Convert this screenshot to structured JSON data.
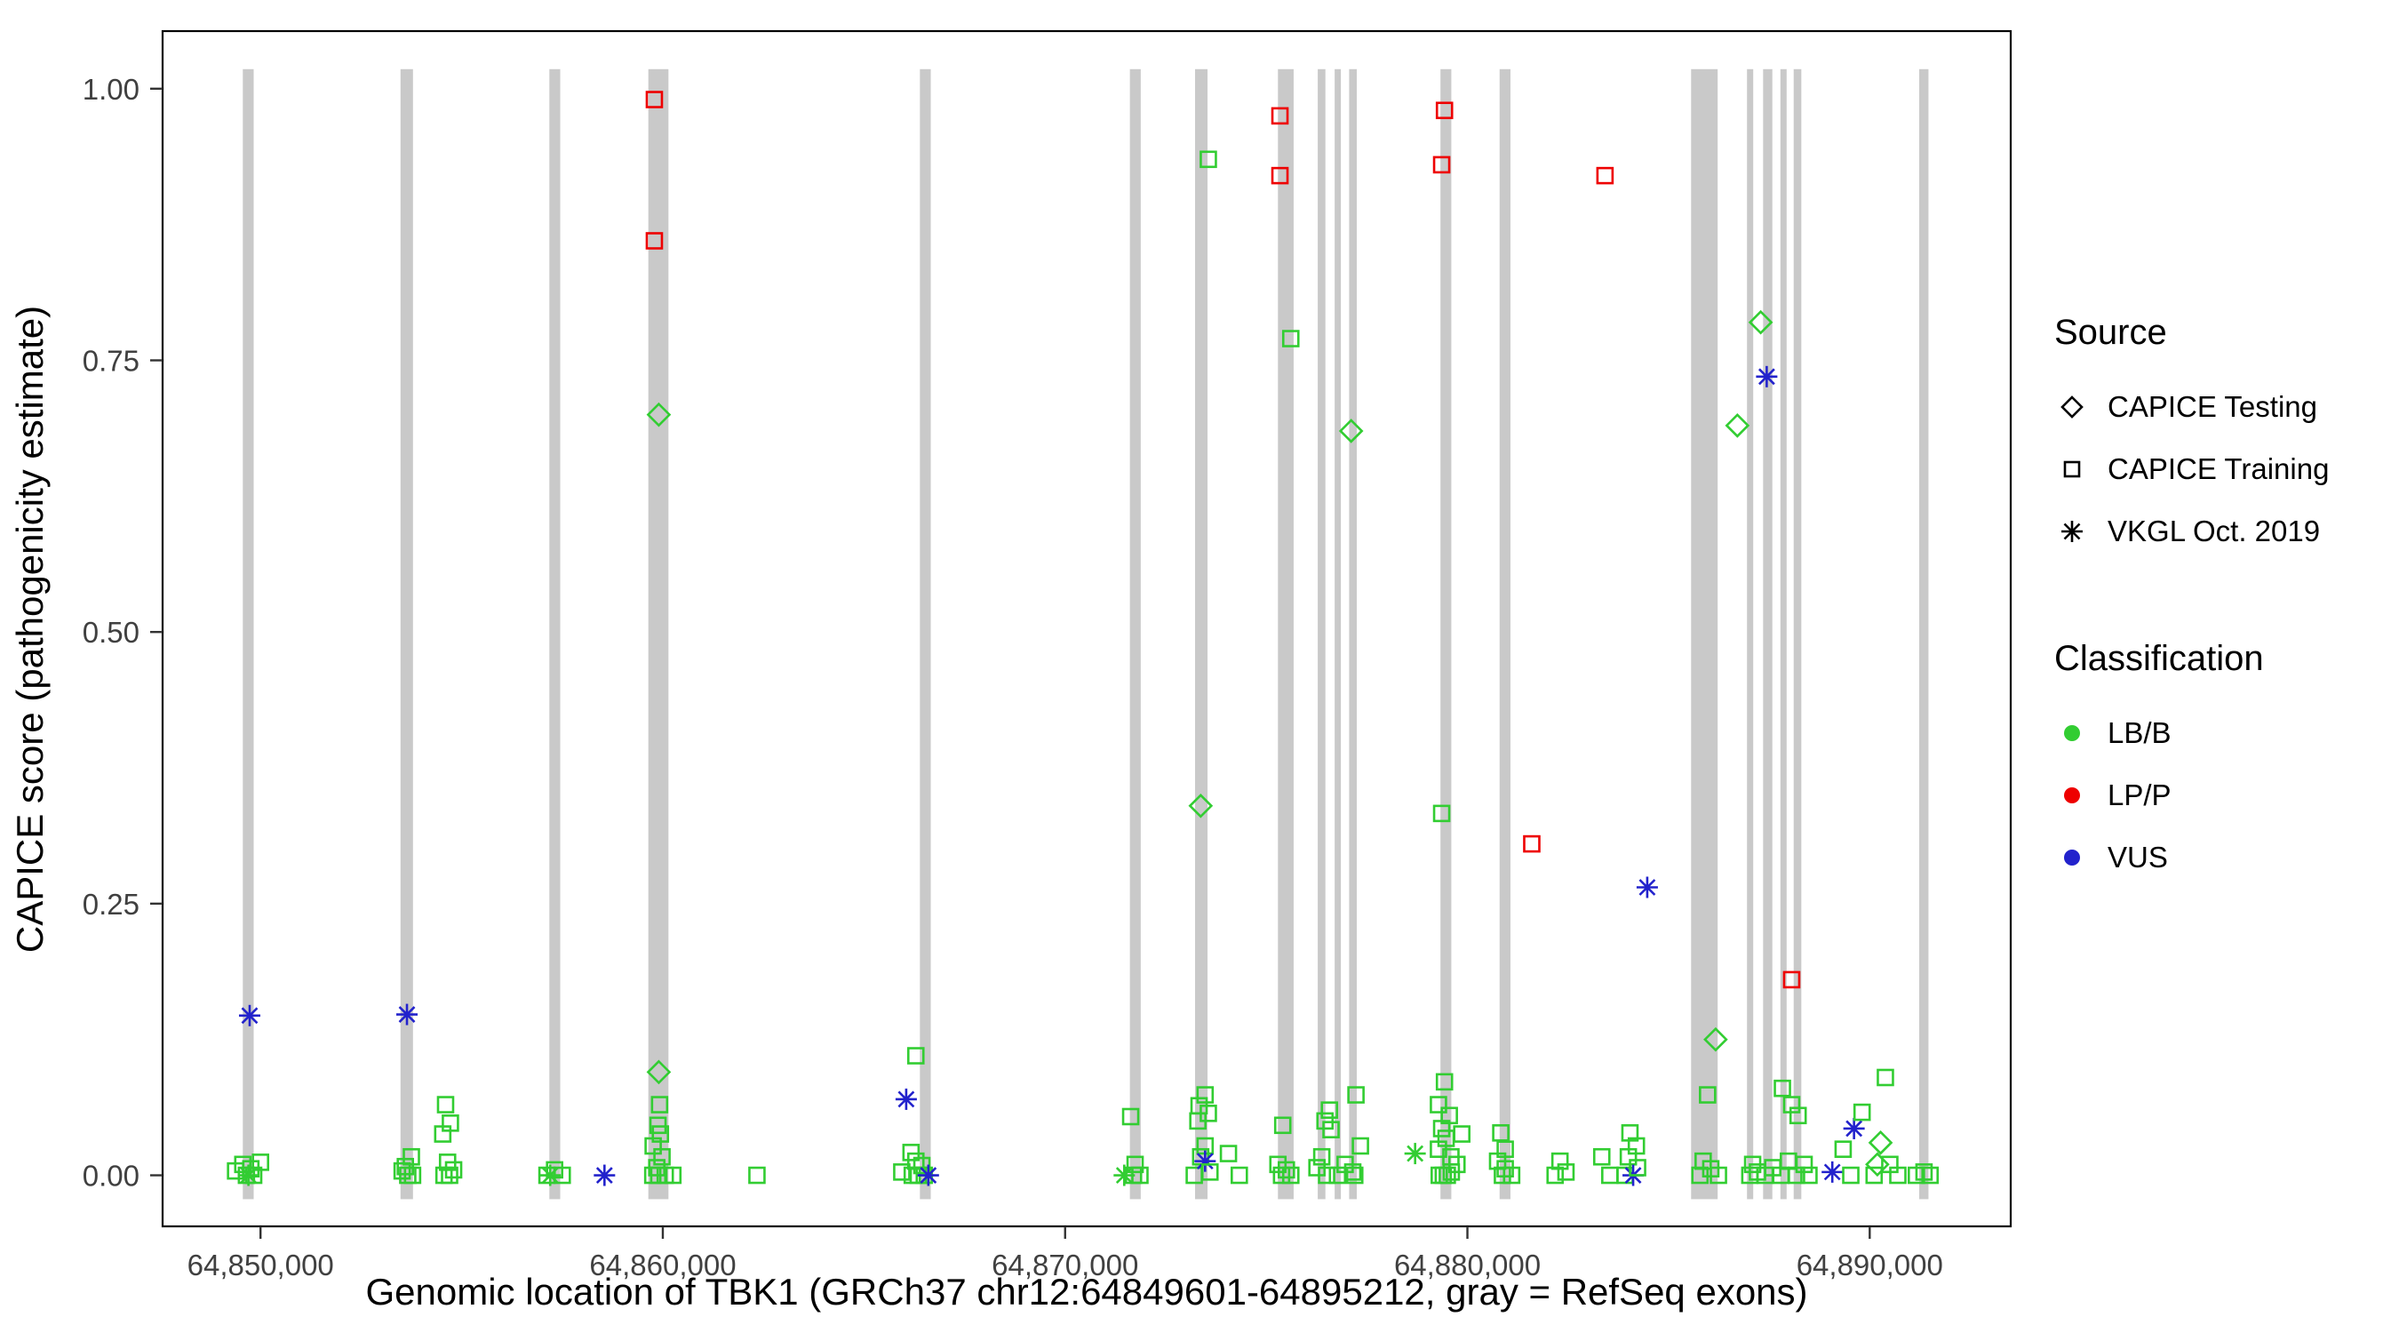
{
  "chart_data": {
    "type": "scatter",
    "title": "",
    "xlabel": "Genomic location of TBK1 (GRCh37 chr12:64849601-64895212, gray = RefSeq exons)",
    "ylabel": "CAPICE score (pathogenicity estimate)",
    "axes": {
      "xlim": [
        64847566,
        64893505
      ],
      "ylim": [
        -0.047,
        1.053
      ],
      "xticks": [
        {
          "v": 64850000,
          "label": "64,850,000"
        },
        {
          "v": 64860000,
          "label": "64,860,000"
        },
        {
          "v": 64870000,
          "label": "64,870,000"
        },
        {
          "v": 64880000,
          "label": "64,880,000"
        },
        {
          "v": 64890000,
          "label": "64,890,000"
        }
      ],
      "yticks": [
        {
          "v": 0.0,
          "label": "0.00"
        },
        {
          "v": 0.25,
          "label": "0.25"
        },
        {
          "v": 0.5,
          "label": "0.50"
        },
        {
          "v": 0.75,
          "label": "0.75"
        },
        {
          "v": 1.0,
          "label": "1.00"
        }
      ],
      "grid": false
    },
    "colors": {
      "g": "#32CD32",
      "r": "#EE0000",
      "b": "#2222CC",
      "exon": "#C9C9C9"
    },
    "shape_meaning": {
      "d": "CAPICE Testing",
      "s": "CAPICE Training",
      "a": "VKGL Oct. 2019"
    },
    "class_meaning": {
      "g": "LB/B",
      "r": "LP/P",
      "b": "VUS"
    },
    "exon_band": {
      "ymin": -0.022,
      "ymax": 1.018
    },
    "exons": [
      [
        64849560,
        64849830
      ],
      [
        64853480,
        64853790
      ],
      [
        64857180,
        64857450
      ],
      [
        64859640,
        64860140
      ],
      [
        64866390,
        64866660
      ],
      [
        64871610,
        64871880
      ],
      [
        64873230,
        64873540
      ],
      [
        64875290,
        64875680
      ],
      [
        64876280,
        64876470
      ],
      [
        64876700,
        64876850
      ],
      [
        64877060,
        64877250
      ],
      [
        64879330,
        64879600
      ],
      [
        64880800,
        64881070
      ],
      [
        64885560,
        64886220
      ],
      [
        64886950,
        64887100
      ],
      [
        64887350,
        64887580
      ],
      [
        64887780,
        64887930
      ],
      [
        64888110,
        64888300
      ],
      [
        64891230,
        64891460
      ]
    ],
    "points": [
      [
        64849380,
        0.004,
        "s",
        "g"
      ],
      [
        64849560,
        0.01,
        "s",
        "g"
      ],
      [
        64849650,
        0.0,
        "s",
        "g"
      ],
      [
        64849700,
        0.0,
        "a",
        "g"
      ],
      [
        64849730,
        0.147,
        "a",
        "b"
      ],
      [
        64849760,
        0.006,
        "s",
        "g"
      ],
      [
        64849830,
        0.0,
        "s",
        "g"
      ],
      [
        64850000,
        0.012,
        "s",
        "g"
      ],
      [
        64853520,
        0.004,
        "s",
        "g"
      ],
      [
        64853600,
        0.008,
        "s",
        "g"
      ],
      [
        64853640,
        0.148,
        "a",
        "b"
      ],
      [
        64853660,
        0.0,
        "s",
        "g"
      ],
      [
        64853750,
        0.017,
        "s",
        "g"
      ],
      [
        64853780,
        0.0,
        "s",
        "g"
      ],
      [
        64854530,
        0.038,
        "s",
        "g"
      ],
      [
        64854560,
        0.0,
        "s",
        "g"
      ],
      [
        64854600,
        0.065,
        "s",
        "g"
      ],
      [
        64854650,
        0.012,
        "s",
        "g"
      ],
      [
        64854700,
        0.0,
        "s",
        "g"
      ],
      [
        64854720,
        0.048,
        "s",
        "g"
      ],
      [
        64854800,
        0.005,
        "s",
        "g"
      ],
      [
        64857120,
        0.0,
        "s",
        "g"
      ],
      [
        64857200,
        0.0,
        "a",
        "g"
      ],
      [
        64857310,
        0.005,
        "s",
        "g"
      ],
      [
        64857500,
        0.0,
        "s",
        "g"
      ],
      [
        64858550,
        0.0,
        "a",
        "b"
      ],
      [
        64859750,
        0.0,
        "s",
        "g"
      ],
      [
        64859760,
        0.027,
        "s",
        "g"
      ],
      [
        64859790,
        0.99,
        "s",
        "r"
      ],
      [
        64859790,
        0.86,
        "s",
        "r"
      ],
      [
        64859850,
        0.007,
        "s",
        "g"
      ],
      [
        64859880,
        0.046,
        "s",
        "g"
      ],
      [
        64859900,
        0.7,
        "d",
        "g"
      ],
      [
        64859900,
        0.095,
        "d",
        "g"
      ],
      [
        64859900,
        0.0,
        "s",
        "g"
      ],
      [
        64859920,
        0.065,
        "s",
        "g"
      ],
      [
        64859940,
        0.038,
        "s",
        "g"
      ],
      [
        64859980,
        0.017,
        "s",
        "g"
      ],
      [
        64860060,
        0.0,
        "s",
        "g"
      ],
      [
        64860250,
        0.0,
        "s",
        "g"
      ],
      [
        64862340,
        0.0,
        "s",
        "g"
      ],
      [
        64865940,
        0.003,
        "s",
        "g"
      ],
      [
        64866050,
        0.07,
        "a",
        "b"
      ],
      [
        64866170,
        0.021,
        "s",
        "g"
      ],
      [
        64866200,
        0.0,
        "s",
        "g"
      ],
      [
        64866290,
        0.11,
        "s",
        "g"
      ],
      [
        64866290,
        0.013,
        "s",
        "g"
      ],
      [
        64866350,
        0.0,
        "s",
        "g"
      ],
      [
        64866440,
        0.009,
        "s",
        "g"
      ],
      [
        64866500,
        0.0,
        "s",
        "g"
      ],
      [
        64866600,
        0.0,
        "a",
        "b"
      ],
      [
        64871470,
        0.0,
        "a",
        "g"
      ],
      [
        64871630,
        0.054,
        "s",
        "g"
      ],
      [
        64871700,
        0.0,
        "s",
        "g"
      ],
      [
        64871740,
        0.01,
        "s",
        "g"
      ],
      [
        64871860,
        0.0,
        "s",
        "g"
      ],
      [
        64873210,
        0.0,
        "s",
        "g"
      ],
      [
        64873300,
        0.05,
        "s",
        "g"
      ],
      [
        64873330,
        0.064,
        "s",
        "g"
      ],
      [
        64873370,
        0.34,
        "d",
        "g"
      ],
      [
        64873370,
        0.017,
        "s",
        "g"
      ],
      [
        64873480,
        0.074,
        "s",
        "g"
      ],
      [
        64873480,
        0.027,
        "s",
        "g"
      ],
      [
        64873480,
        0.013,
        "a",
        "b"
      ],
      [
        64873560,
        0.935,
        "s",
        "g"
      ],
      [
        64873560,
        0.057,
        "s",
        "g"
      ],
      [
        64873600,
        0.003,
        "s",
        "g"
      ],
      [
        64874060,
        0.02,
        "s",
        "g"
      ],
      [
        64874330,
        0.0,
        "s",
        "g"
      ],
      [
        64875290,
        0.01,
        "s",
        "g"
      ],
      [
        64875340,
        0.975,
        "s",
        "r"
      ],
      [
        64875340,
        0.92,
        "s",
        "r"
      ],
      [
        64875380,
        0.0,
        "s",
        "g"
      ],
      [
        64875410,
        0.046,
        "s",
        "g"
      ],
      [
        64875500,
        0.005,
        "s",
        "g"
      ],
      [
        64875610,
        0.77,
        "s",
        "g"
      ],
      [
        64875610,
        0.0,
        "s",
        "g"
      ],
      [
        64876260,
        0.007,
        "s",
        "g"
      ],
      [
        64876380,
        0.017,
        "s",
        "g"
      ],
      [
        64876460,
        0.05,
        "s",
        "g"
      ],
      [
        64876500,
        0.0,
        "s",
        "g"
      ],
      [
        64876570,
        0.06,
        "s",
        "g"
      ],
      [
        64876610,
        0.042,
        "s",
        "g"
      ],
      [
        64876770,
        0.0,
        "s",
        "g"
      ],
      [
        64876960,
        0.01,
        "s",
        "g"
      ],
      [
        64877110,
        0.685,
        "d",
        "g"
      ],
      [
        64877150,
        0.003,
        "s",
        "g"
      ],
      [
        64877200,
        0.0,
        "s",
        "g"
      ],
      [
        64877230,
        0.074,
        "s",
        "g"
      ],
      [
        64877340,
        0.027,
        "s",
        "g"
      ],
      [
        64878700,
        0.02,
        "a",
        "g"
      ],
      [
        64879280,
        0.065,
        "s",
        "g"
      ],
      [
        64879280,
        0.024,
        "s",
        "g"
      ],
      [
        64879300,
        0.0,
        "s",
        "g"
      ],
      [
        64879360,
        0.93,
        "s",
        "r"
      ],
      [
        64879360,
        0.333,
        "s",
        "g"
      ],
      [
        64879360,
        0.043,
        "s",
        "g"
      ],
      [
        64879400,
        0.0,
        "s",
        "g"
      ],
      [
        64879430,
        0.98,
        "s",
        "r"
      ],
      [
        64879430,
        0.086,
        "s",
        "g"
      ],
      [
        64879470,
        0.034,
        "s",
        "g"
      ],
      [
        64879500,
        0.0,
        "s",
        "g"
      ],
      [
        64879550,
        0.055,
        "s",
        "g"
      ],
      [
        64879590,
        0.017,
        "s",
        "g"
      ],
      [
        64879600,
        0.003,
        "s",
        "g"
      ],
      [
        64879740,
        0.01,
        "s",
        "g"
      ],
      [
        64879860,
        0.038,
        "s",
        "g"
      ],
      [
        64880750,
        0.013,
        "s",
        "g"
      ],
      [
        64880830,
        0.039,
        "s",
        "g"
      ],
      [
        64880870,
        0.0,
        "s",
        "g"
      ],
      [
        64880940,
        0.024,
        "s",
        "g"
      ],
      [
        64880940,
        0.006,
        "s",
        "g"
      ],
      [
        64881100,
        0.0,
        "s",
        "g"
      ],
      [
        64881600,
        0.305,
        "s",
        "r"
      ],
      [
        64882180,
        0.0,
        "s",
        "g"
      ],
      [
        64882300,
        0.013,
        "s",
        "g"
      ],
      [
        64882450,
        0.003,
        "s",
        "g"
      ],
      [
        64883340,
        0.017,
        "s",
        "g"
      ],
      [
        64883420,
        0.92,
        "s",
        "r"
      ],
      [
        64883540,
        0.0,
        "s",
        "g"
      ],
      [
        64883920,
        0.0,
        "s",
        "g"
      ],
      [
        64884000,
        0.017,
        "s",
        "g"
      ],
      [
        64884040,
        0.039,
        "s",
        "g"
      ],
      [
        64884120,
        0.0,
        "a",
        "b"
      ],
      [
        64884200,
        0.027,
        "s",
        "g"
      ],
      [
        64884230,
        0.007,
        "s",
        "g"
      ],
      [
        64884470,
        0.265,
        "a",
        "b"
      ],
      [
        64885780,
        0.0,
        "s",
        "g"
      ],
      [
        64885860,
        0.013,
        "s",
        "g"
      ],
      [
        64885970,
        0.074,
        "s",
        "g"
      ],
      [
        64886050,
        0.006,
        "s",
        "g"
      ],
      [
        64886170,
        0.125,
        "d",
        "g"
      ],
      [
        64886240,
        0.0,
        "s",
        "g"
      ],
      [
        64886710,
        0.69,
        "d",
        "g"
      ],
      [
        64887020,
        0.0,
        "s",
        "g"
      ],
      [
        64887090,
        0.01,
        "s",
        "g"
      ],
      [
        64887210,
        0.003,
        "s",
        "g"
      ],
      [
        64887290,
        0.785,
        "d",
        "g"
      ],
      [
        64887400,
        0.0,
        "s",
        "g"
      ],
      [
        64887440,
        0.735,
        "a",
        "b"
      ],
      [
        64887590,
        0.007,
        "s",
        "g"
      ],
      [
        64887790,
        0.0,
        "s",
        "g"
      ],
      [
        64887830,
        0.08,
        "s",
        "g"
      ],
      [
        64887980,
        0.013,
        "s",
        "g"
      ],
      [
        64888060,
        0.18,
        "s",
        "r"
      ],
      [
        64888060,
        0.065,
        "s",
        "g"
      ],
      [
        64888180,
        0.0,
        "s",
        "g"
      ],
      [
        64888220,
        0.055,
        "s",
        "g"
      ],
      [
        64888370,
        0.01,
        "s",
        "g"
      ],
      [
        64888490,
        0.0,
        "s",
        "g"
      ],
      [
        64889070,
        0.003,
        "a",
        "b"
      ],
      [
        64889340,
        0.024,
        "s",
        "g"
      ],
      [
        64889530,
        0.0,
        "s",
        "g"
      ],
      [
        64889610,
        0.043,
        "a",
        "b"
      ],
      [
        64889810,
        0.058,
        "s",
        "g"
      ],
      [
        64890110,
        0.0,
        "s",
        "g"
      ],
      [
        64890190,
        0.01,
        "d",
        "g"
      ],
      [
        64890270,
        0.03,
        "d",
        "g"
      ],
      [
        64890390,
        0.09,
        "s",
        "g"
      ],
      [
        64890500,
        0.01,
        "s",
        "g"
      ],
      [
        64890700,
        0.0,
        "s",
        "g"
      ],
      [
        64891160,
        0.0,
        "s",
        "g"
      ],
      [
        64891350,
        0.003,
        "s",
        "g"
      ],
      [
        64891500,
        0.0,
        "s",
        "g"
      ]
    ]
  },
  "legend": {
    "source_title": "Source",
    "source_items": [
      {
        "label": "CAPICE Testing",
        "symbol": "diamond"
      },
      {
        "label": "CAPICE Training",
        "symbol": "square"
      },
      {
        "label": "VKGL Oct. 2019",
        "symbol": "asterisk"
      }
    ],
    "classification_title": "Classification",
    "classification_items": [
      {
        "label": "LB/B",
        "color": "#32CD32"
      },
      {
        "label": "LP/P",
        "color": "#EE0000"
      },
      {
        "label": "VUS",
        "color": "#2222CC"
      }
    ]
  }
}
